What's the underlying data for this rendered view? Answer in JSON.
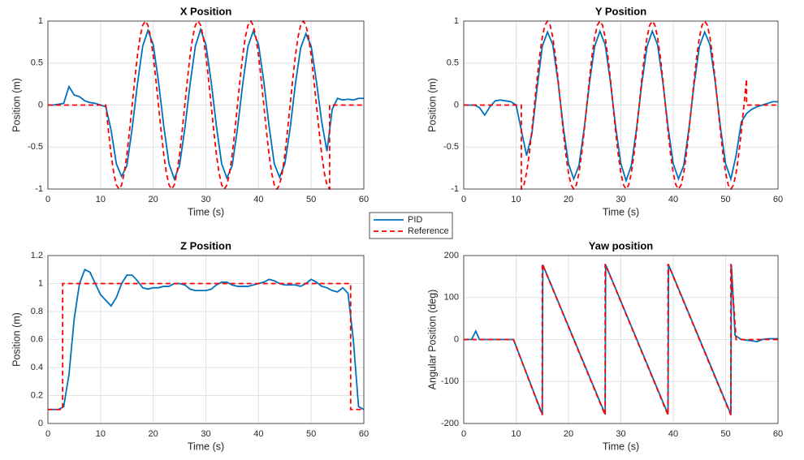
{
  "chart_data": [
    {
      "type": "line",
      "title": "X Position",
      "xlabel": "Time (s)",
      "ylabel": "Position (m)",
      "xlim": [
        0,
        60
      ],
      "xticks": [
        0,
        10,
        20,
        30,
        40,
        50,
        60
      ],
      "ylim": [
        -1,
        1
      ],
      "yticks": [
        -1,
        -0.5,
        0,
        0.5,
        1
      ],
      "grid": true,
      "series": [
        {
          "name": "PID",
          "color": "#0072bd",
          "linestyle": "solid",
          "x": [
            0,
            1,
            2,
            3,
            4,
            5,
            6,
            7,
            8,
            9,
            10,
            11,
            12,
            13,
            14,
            15,
            16,
            17,
            18,
            19,
            20,
            21,
            22,
            23,
            24,
            25,
            26,
            27,
            28,
            29,
            30,
            31,
            32,
            33,
            34,
            35,
            36,
            37,
            38,
            39,
            40,
            41,
            42,
            43,
            44,
            45,
            46,
            47,
            48,
            49,
            50,
            51,
            52,
            53,
            54,
            55,
            56,
            57,
            58,
            59,
            60
          ],
          "values": [
            0,
            0,
            0.01,
            0.02,
            0.22,
            0.12,
            0.1,
            0.05,
            0.03,
            0.02,
            0,
            -0.02,
            -0.3,
            -0.7,
            -0.85,
            -0.72,
            -0.28,
            0.25,
            0.7,
            0.89,
            0.72,
            0.28,
            -0.25,
            -0.7,
            -0.88,
            -0.72,
            -0.28,
            0.25,
            0.7,
            0.9,
            0.72,
            0.28,
            -0.25,
            -0.7,
            -0.87,
            -0.72,
            -0.28,
            0.25,
            0.7,
            0.88,
            0.72,
            0.28,
            -0.25,
            -0.7,
            -0.86,
            -0.7,
            -0.28,
            0.25,
            0.68,
            0.85,
            0.7,
            0.28,
            -0.2,
            -0.55,
            -0.05,
            0.08,
            0.06,
            0.07,
            0.06,
            0.08,
            0.08
          ]
        },
        {
          "name": "Reference",
          "color": "#ff0000",
          "linestyle": "dashed",
          "x": [
            0,
            11,
            11.5,
            12,
            12.5,
            13,
            13.5,
            14,
            14.5,
            15,
            15.5,
            16,
            16.5,
            17,
            17.5,
            18,
            18.5,
            19,
            19.5,
            20,
            20.5,
            21,
            21.5,
            22,
            22.5,
            23,
            23.5,
            24,
            24.5,
            25,
            25.5,
            26,
            26.5,
            27,
            27.5,
            28,
            28.5,
            29,
            29.5,
            30,
            30.5,
            31,
            31.5,
            32,
            32.5,
            33,
            33.5,
            34,
            34.5,
            35,
            35.5,
            36,
            36.5,
            37,
            37.5,
            38,
            38.5,
            39,
            39.5,
            40,
            40.5,
            41,
            41.5,
            42,
            42.5,
            43,
            43.5,
            44,
            44.5,
            45,
            45.5,
            46,
            46.5,
            47,
            47.5,
            48,
            48.5,
            49,
            49.5,
            50,
            50.5,
            51,
            51.5,
            52,
            52.5,
            53,
            53.5,
            53.5,
            60
          ],
          "values": [
            0,
            0,
            -0.309,
            -0.588,
            -0.809,
            -0.951,
            -1,
            -0.951,
            -0.809,
            -0.588,
            -0.309,
            0,
            0.309,
            0.588,
            0.809,
            0.951,
            1,
            0.951,
            0.809,
            0.588,
            0.309,
            0,
            -0.309,
            -0.588,
            -0.809,
            -0.951,
            -1,
            -0.951,
            -0.809,
            -0.588,
            -0.309,
            0,
            0.309,
            0.588,
            0.809,
            0.951,
            1,
            0.951,
            0.809,
            0.588,
            0.309,
            0,
            -0.309,
            -0.588,
            -0.809,
            -0.951,
            -1,
            -0.951,
            -0.809,
            -0.588,
            -0.309,
            0,
            0.309,
            0.588,
            0.809,
            0.951,
            1,
            0.951,
            0.809,
            0.588,
            0.309,
            0,
            -0.309,
            -0.588,
            -0.809,
            -0.951,
            -1,
            -0.951,
            -0.809,
            -0.588,
            -0.309,
            0,
            0.309,
            0.588,
            0.809,
            0.951,
            1,
            0.951,
            0.809,
            0.588,
            0.309,
            0,
            -0.309,
            -0.588,
            -0.809,
            -0.951,
            -1,
            0,
            0
          ]
        }
      ]
    },
    {
      "type": "line",
      "title": "Y Position",
      "xlabel": "Time (s)",
      "ylabel": "Position (m)",
      "xlim": [
        0,
        60
      ],
      "xticks": [
        0,
        10,
        20,
        30,
        40,
        50,
        60
      ],
      "ylim": [
        -1,
        1
      ],
      "yticks": [
        -1,
        -0.5,
        0,
        0.5,
        1
      ],
      "grid": true,
      "series": [
        {
          "name": "PID",
          "color": "#0072bd",
          "linestyle": "solid",
          "x": [
            0,
            1,
            2,
            3,
            4,
            5,
            6,
            7,
            8,
            9,
            10,
            11,
            12,
            13,
            14,
            15,
            16,
            17,
            18,
            19,
            20,
            21,
            22,
            23,
            24,
            25,
            26,
            27,
            28,
            29,
            30,
            31,
            32,
            33,
            34,
            35,
            36,
            37,
            38,
            39,
            40,
            41,
            42,
            43,
            44,
            45,
            46,
            47,
            48,
            49,
            50,
            51,
            52,
            53,
            54,
            55,
            56,
            57,
            58,
            59,
            60
          ],
          "values": [
            0,
            0,
            0,
            -0.03,
            -0.12,
            -0.02,
            0.05,
            0.06,
            0.05,
            0.04,
            0,
            -0.3,
            -0.6,
            -0.35,
            0.2,
            0.7,
            0.87,
            0.72,
            0.28,
            -0.26,
            -0.7,
            -0.88,
            -0.72,
            -0.28,
            0.26,
            0.7,
            0.88,
            0.72,
            0.28,
            -0.26,
            -0.7,
            -0.9,
            -0.72,
            -0.28,
            0.26,
            0.7,
            0.88,
            0.72,
            0.28,
            -0.26,
            -0.7,
            -0.88,
            -0.72,
            -0.28,
            0.26,
            0.7,
            0.87,
            0.72,
            0.28,
            -0.26,
            -0.7,
            -0.88,
            -0.6,
            -0.2,
            -0.1,
            -0.05,
            -0.02,
            0,
            0.02,
            0.04,
            0.04
          ]
        },
        {
          "name": "Reference",
          "color": "#ff0000",
          "linestyle": "dashed",
          "x": [
            0,
            11,
            11,
            11.5,
            12,
            12.5,
            13,
            13.5,
            14,
            14.5,
            15,
            15.5,
            16,
            16.5,
            17,
            17.5,
            18,
            18.5,
            19,
            19.5,
            20,
            20.5,
            21,
            21.5,
            22,
            22.5,
            23,
            23.5,
            24,
            24.5,
            25,
            25.5,
            26,
            26.5,
            27,
            27.5,
            28,
            28.5,
            29,
            29.5,
            30,
            30.5,
            31,
            31.5,
            32,
            32.5,
            33,
            33.5,
            34,
            34.5,
            35,
            35.5,
            36,
            36.5,
            37,
            37.5,
            38,
            38.5,
            39,
            39.5,
            40,
            40.5,
            41,
            41.5,
            42,
            42.5,
            43,
            43.5,
            44,
            44.5,
            45,
            45.5,
            46,
            46.5,
            47,
            47.5,
            48,
            48.5,
            49,
            49.5,
            50,
            50.5,
            51,
            51.5,
            52,
            52.5,
            53,
            53.5,
            54,
            54,
            60
          ],
          "values": [
            0,
            0,
            -1,
            -0.951,
            -0.809,
            -0.588,
            -0.309,
            0,
            0.309,
            0.588,
            0.809,
            0.951,
            1,
            0.951,
            0.809,
            0.588,
            0.309,
            0,
            -0.309,
            -0.588,
            -0.809,
            -0.951,
            -1,
            -0.951,
            -0.809,
            -0.588,
            -0.309,
            0,
            0.309,
            0.588,
            0.809,
            0.951,
            1,
            0.951,
            0.809,
            0.588,
            0.309,
            0,
            -0.309,
            -0.588,
            -0.809,
            -0.951,
            -1,
            -0.951,
            -0.809,
            -0.588,
            -0.309,
            0,
            0.309,
            0.588,
            0.809,
            0.951,
            1,
            0.951,
            0.809,
            0.588,
            0.309,
            0,
            -0.309,
            -0.588,
            -0.809,
            -0.951,
            -1,
            -0.951,
            -0.809,
            -0.588,
            -0.309,
            0,
            0.309,
            0.588,
            0.809,
            0.951,
            1,
            0.951,
            0.809,
            0.588,
            0.309,
            0,
            -0.309,
            -0.588,
            -0.809,
            -0.951,
            -1,
            -0.951,
            -0.809,
            -0.588,
            -0.309,
            0,
            0.309,
            0,
            0
          ]
        }
      ]
    },
    {
      "type": "line",
      "title": "Z Position",
      "xlabel": "Time (s)",
      "ylabel": "Position (m)",
      "xlim": [
        0,
        60
      ],
      "xticks": [
        0,
        10,
        20,
        30,
        40,
        50,
        60
      ],
      "ylim": [
        0,
        1.2
      ],
      "yticks": [
        0,
        0.2,
        0.4,
        0.6,
        0.8,
        1,
        1.2
      ],
      "grid": true,
      "series": [
        {
          "name": "PID",
          "color": "#0072bd",
          "linestyle": "solid",
          "x": [
            0,
            1,
            2,
            3,
            4,
            5,
            6,
            7,
            8,
            9,
            10,
            11,
            12,
            13,
            14,
            15,
            16,
            17,
            18,
            19,
            20,
            21,
            22,
            23,
            24,
            25,
            26,
            27,
            28,
            29,
            30,
            31,
            32,
            33,
            34,
            35,
            36,
            37,
            38,
            39,
            40,
            41,
            42,
            43,
            44,
            45,
            46,
            47,
            48,
            49,
            50,
            51,
            52,
            53,
            54,
            55,
            56,
            57,
            58,
            59,
            60
          ],
          "values": [
            0.1,
            0.1,
            0.1,
            0.12,
            0.35,
            0.75,
            1,
            1.1,
            1.08,
            1,
            0.92,
            0.88,
            0.84,
            0.9,
            1,
            1.06,
            1.06,
            1.02,
            0.97,
            0.96,
            0.97,
            0.97,
            0.98,
            0.98,
            1,
            1,
            0.99,
            0.96,
            0.95,
            0.95,
            0.95,
            0.96,
            0.99,
            1.01,
            1.01,
            0.99,
            0.98,
            0.98,
            0.98,
            0.99,
            1,
            1.01,
            1.03,
            1.02,
            1,
            0.99,
            0.99,
            0.99,
            0.98,
            1,
            1.03,
            1.01,
            0.98,
            0.97,
            0.95,
            0.94,
            0.97,
            0.93,
            0.6,
            0.12,
            0.1
          ]
        },
        {
          "name": "Reference",
          "color": "#ff0000",
          "linestyle": "dashed",
          "x": [
            0,
            2.8,
            2.8,
            57.5,
            57.5,
            60
          ],
          "values": [
            0.1,
            0.1,
            1,
            1,
            0.1,
            0.1
          ]
        }
      ]
    },
    {
      "type": "line",
      "title": "Yaw position",
      "xlabel": "Time (s)",
      "ylabel": "Angular Position (deg)",
      "xlim": [
        0,
        60
      ],
      "xticks": [
        0,
        10,
        20,
        30,
        40,
        50,
        60
      ],
      "ylim": [
        -200,
        200
      ],
      "yticks": [
        -200,
        -100,
        0,
        100,
        200
      ],
      "grid": true,
      "series": [
        {
          "name": "PID",
          "color": "#0072bd",
          "linestyle": "solid",
          "x": [
            0,
            1.5,
            2.3,
            3,
            9.5,
            15,
            15.1,
            27,
            27.1,
            39,
            39.1,
            51,
            51.1,
            51.8,
            53,
            55,
            56,
            57,
            58,
            60
          ],
          "values": [
            0,
            0,
            20,
            0,
            0,
            -178,
            178,
            -178,
            178,
            -178,
            178,
            -178,
            178,
            10,
            0,
            -3,
            -5,
            0,
            2,
            2
          ]
        },
        {
          "name": "Reference",
          "color": "#ff0000",
          "linestyle": "dashed",
          "x": [
            0,
            9.5,
            15,
            15,
            27,
            27,
            39,
            39,
            51,
            51,
            52,
            60
          ],
          "values": [
            0,
            0,
            -180,
            180,
            -180,
            180,
            -180,
            180,
            -180,
            180,
            0,
            0
          ]
        }
      ]
    }
  ]
}
